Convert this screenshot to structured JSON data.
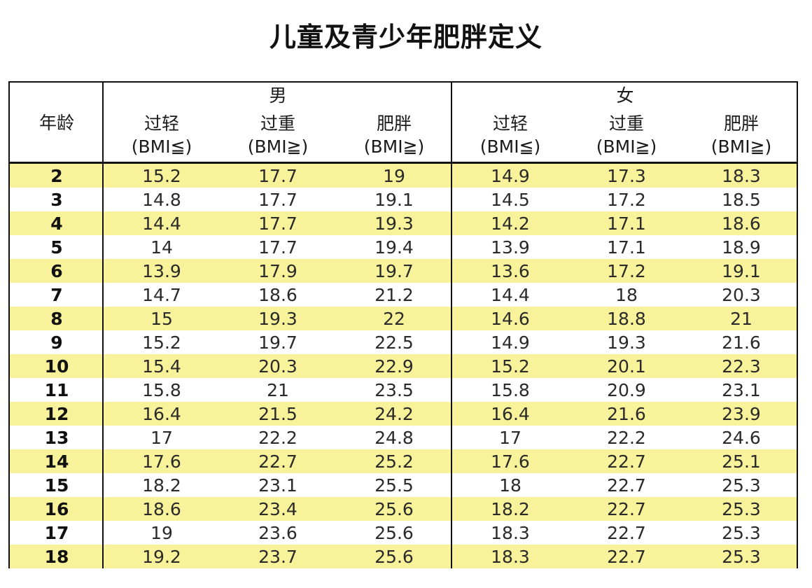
{
  "title": "儿童及青少年肥胖定义",
  "header": {
    "age_label": "年龄",
    "male": "男",
    "female": "女",
    "columns": [
      {
        "line1": "过轻",
        "line2": "(BMI≦)"
      },
      {
        "line1": "过重",
        "line2": "(BMI≧)"
      },
      {
        "line1": "肥胖",
        "line2": "(BMI≧)"
      },
      {
        "line1": "过轻",
        "line2": "(BMI≦)"
      },
      {
        "line1": "过重",
        "line2": "(BMI≧)"
      },
      {
        "line1": "肥胖",
        "line2": "(BMI≧)"
      }
    ]
  },
  "rows": [
    {
      "age": "2",
      "vals": [
        "15.2",
        "17.7",
        "19",
        "14.9",
        "17.3",
        "18.3"
      ]
    },
    {
      "age": "3",
      "vals": [
        "14.8",
        "17.7",
        "19.1",
        "14.5",
        "17.2",
        "18.5"
      ]
    },
    {
      "age": "4",
      "vals": [
        "14.4",
        "17.7",
        "19.3",
        "14.2",
        "17.1",
        "18.6"
      ]
    },
    {
      "age": "5",
      "vals": [
        "14",
        "17.7",
        "19.4",
        "13.9",
        "17.1",
        "18.9"
      ]
    },
    {
      "age": "6",
      "vals": [
        "13.9",
        "17.9",
        "19.7",
        "13.6",
        "17.2",
        "19.1"
      ]
    },
    {
      "age": "7",
      "vals": [
        "14.7",
        "18.6",
        "21.2",
        "14.4",
        "18",
        "20.3"
      ]
    },
    {
      "age": "8",
      "vals": [
        "15",
        "19.3",
        "22",
        "14.6",
        "18.8",
        "21"
      ]
    },
    {
      "age": "9",
      "vals": [
        "15.2",
        "19.7",
        "22.5",
        "14.9",
        "19.3",
        "21.6"
      ]
    },
    {
      "age": "10",
      "vals": [
        "15.4",
        "20.3",
        "22.9",
        "15.2",
        "20.1",
        "22.3"
      ]
    },
    {
      "age": "11",
      "vals": [
        "15.8",
        "21",
        "23.5",
        "15.8",
        "20.9",
        "23.1"
      ]
    },
    {
      "age": "12",
      "vals": [
        "16.4",
        "21.5",
        "24.2",
        "16.4",
        "21.6",
        "23.9"
      ]
    },
    {
      "age": "13",
      "vals": [
        "17",
        "22.2",
        "24.8",
        "17",
        "22.2",
        "24.6"
      ]
    },
    {
      "age": "14",
      "vals": [
        "17.6",
        "22.7",
        "25.2",
        "17.6",
        "22.7",
        "25.1"
      ]
    },
    {
      "age": "15",
      "vals": [
        "18.2",
        "23.1",
        "25.5",
        "18",
        "22.7",
        "25.3"
      ]
    },
    {
      "age": "16",
      "vals": [
        "18.6",
        "23.4",
        "25.6",
        "18.2",
        "22.7",
        "25.3"
      ]
    },
    {
      "age": "17",
      "vals": [
        "19",
        "23.6",
        "25.6",
        "18.3",
        "22.7",
        "25.3"
      ]
    },
    {
      "age": "18",
      "vals": [
        "19.2",
        "23.7",
        "25.6",
        "18.3",
        "22.7",
        "25.3"
      ]
    }
  ],
  "colors": {
    "stripe": "#f8f39a",
    "border": "#111111"
  }
}
